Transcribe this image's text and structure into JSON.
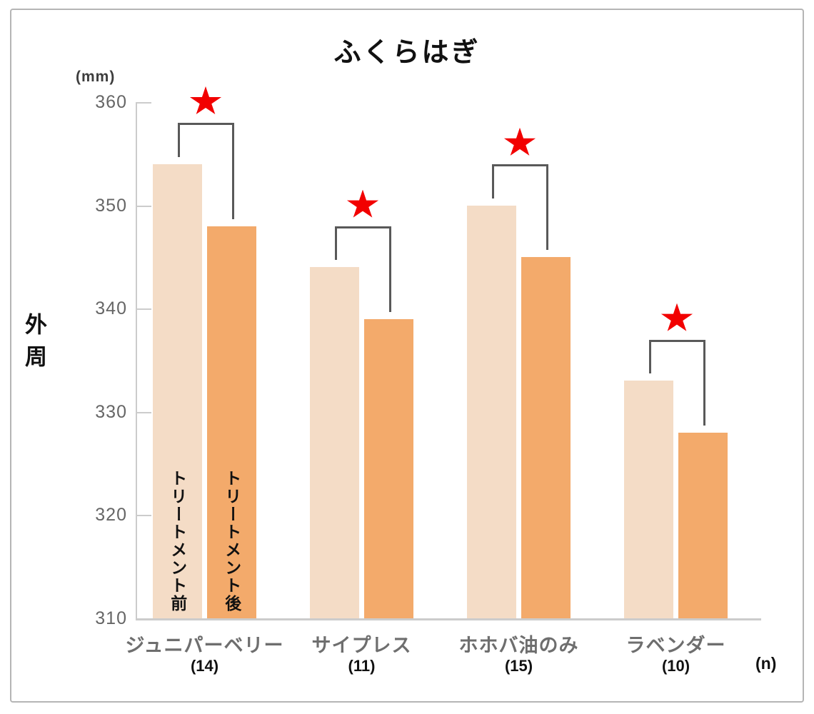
{
  "chart_data": {
    "type": "bar",
    "title": "ふくらはぎ",
    "y_axis_title": "外周",
    "y_unit_label": "(mm)",
    "x_unit_label": "(n)",
    "ylim": [
      310,
      360
    ],
    "yticks": [
      360,
      350,
      340,
      330,
      320,
      310
    ],
    "grid": false,
    "legend_position": "none",
    "categories": [
      "ジュニパーベリー",
      "サイプレス",
      "ホホバ油のみ",
      "ラベンダー"
    ],
    "sample_size_labels": [
      "(14)",
      "(11)",
      "(15)",
      "(10)"
    ],
    "series": [
      {
        "name": "トリートメント前",
        "color": "#f4dcc6",
        "values": [
          354,
          344,
          350,
          333
        ]
      },
      {
        "name": "トリートメント後",
        "color": "#f3aa6b",
        "values": [
          348,
          339,
          345,
          328
        ]
      }
    ],
    "series_labels_shown_inside_group_index": 0,
    "significance": {
      "symbol": "star-icon",
      "color": "#f20000",
      "bracket_color": "#595959",
      "significant_group_indexes": [
        0,
        1,
        2,
        3
      ]
    },
    "colors": {
      "axis": "#cccccc",
      "tick_text": "#666666",
      "category_text": "#6e6e6e",
      "count_text": "#111111",
      "frame_border": "#b5b5b5"
    }
  }
}
